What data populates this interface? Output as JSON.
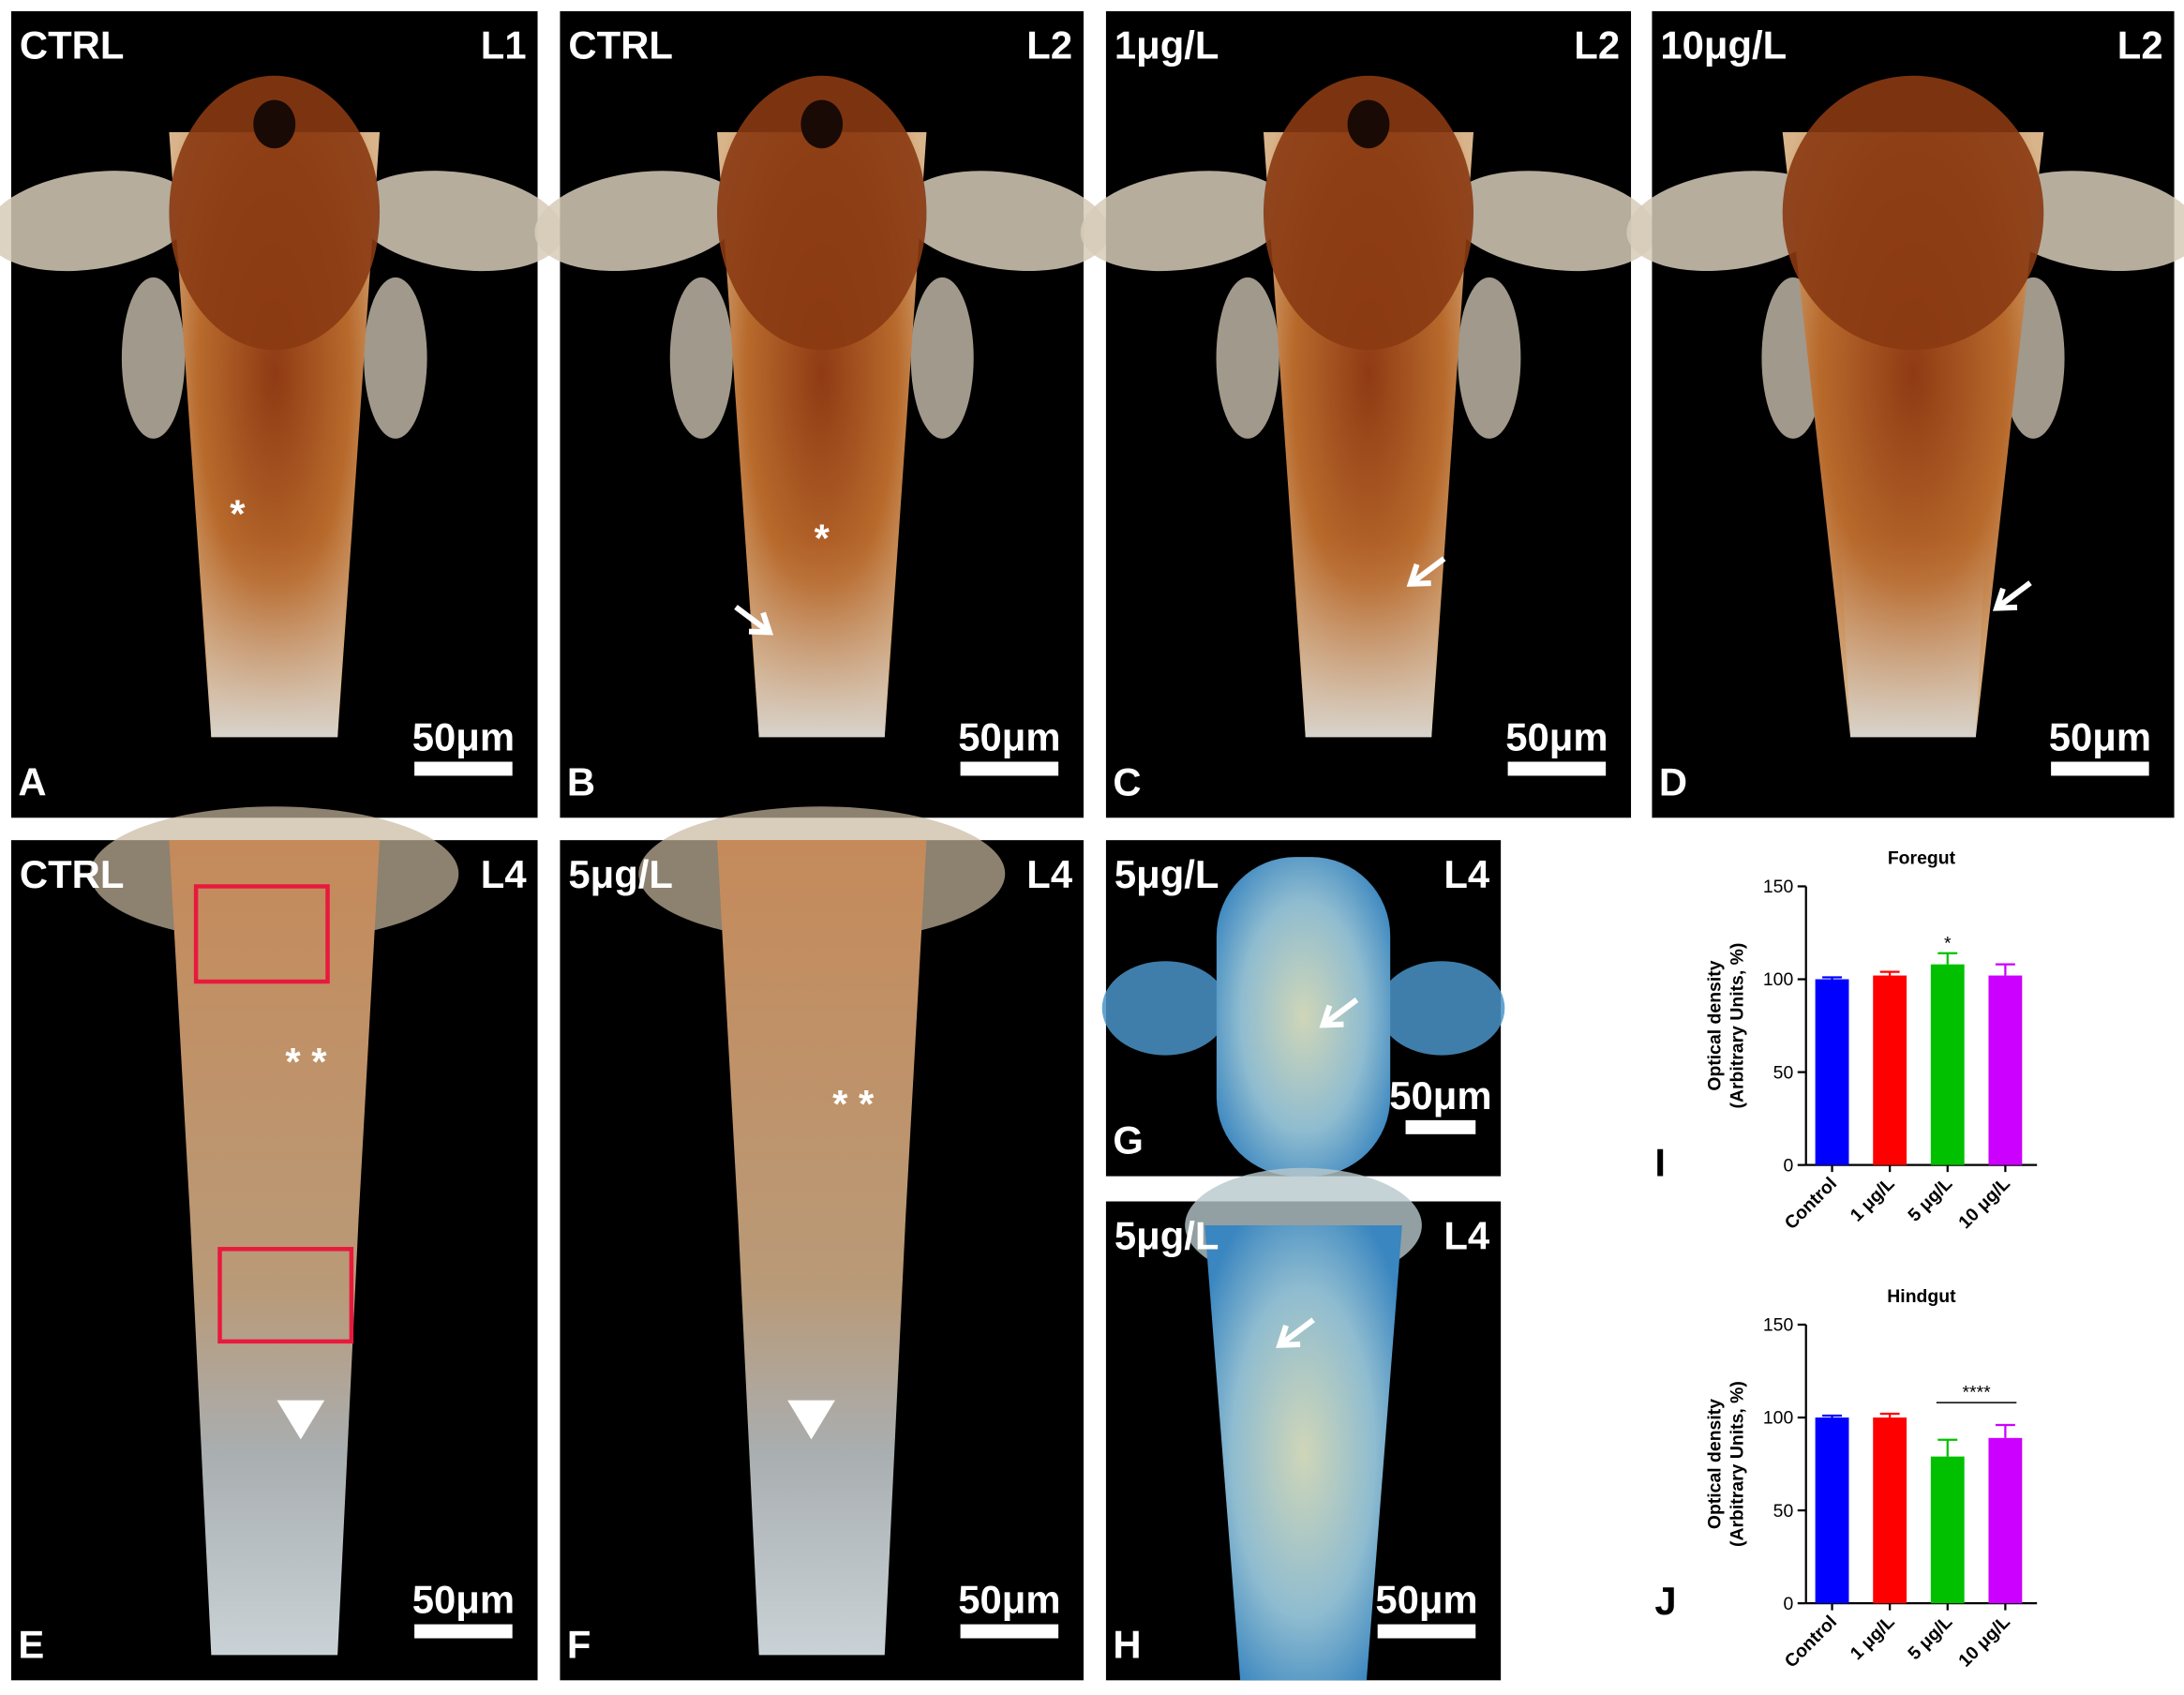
{
  "panels": [
    {
      "letter": "A",
      "condition": "CTRL",
      "stage": "L1",
      "scale_bar": "50μm",
      "marker": "*"
    },
    {
      "letter": "B",
      "condition": "CTRL",
      "stage": "L2",
      "scale_bar": "50μm",
      "marker": "*"
    },
    {
      "letter": "C",
      "condition": "1μg/L",
      "stage": "L2",
      "scale_bar": "50μm"
    },
    {
      "letter": "D",
      "condition": "10μg/L",
      "stage": "L2",
      "scale_bar": "50μm"
    },
    {
      "letter": "E",
      "condition": "CTRL",
      "stage": "L4",
      "scale_bar": "50μm",
      "marker": "* *"
    },
    {
      "letter": "F",
      "condition": "5μg/L",
      "stage": "L4",
      "scale_bar": "50μm",
      "marker": "* *"
    },
    {
      "letter": "G",
      "condition": "5μg/L",
      "stage": "L4",
      "scale_bar": "50μm"
    },
    {
      "letter": "H",
      "condition": "5μg/L",
      "stage": "L4",
      "scale_bar": "50μm"
    }
  ],
  "chart_data": [
    {
      "type": "bar",
      "letter": "I",
      "title": "Foregut",
      "ylabel": [
        "Optical density",
        "(Arbitrary Units, %)"
      ],
      "categories": [
        "Control",
        "1 μg/L",
        "5 μg/L",
        "10 μg/L"
      ],
      "values": [
        100,
        102,
        108,
        102
      ],
      "errors": [
        1,
        2,
        6,
        6
      ],
      "colors": [
        "#0000ff",
        "#ff0000",
        "#00c000",
        "#cc00ff"
      ],
      "annotation": "*",
      "ylim": [
        0,
        150
      ],
      "yticks": [
        0,
        50,
        100,
        150
      ]
    },
    {
      "type": "bar",
      "letter": "J",
      "title": "Hindgut",
      "ylabel": [
        "Optical density",
        "(Arbitrary Units, %)"
      ],
      "categories": [
        "Control",
        "1 μg/L",
        "5 μg/L",
        "10 μg/L"
      ],
      "values": [
        100,
        100,
        79,
        89
      ],
      "errors": [
        1,
        2,
        9,
        7
      ],
      "colors": [
        "#0000ff",
        "#ff0000",
        "#00c000",
        "#cc00ff"
      ],
      "annotation": "****",
      "ylim": [
        0,
        150
      ],
      "yticks": [
        0,
        50,
        100,
        150
      ]
    }
  ]
}
